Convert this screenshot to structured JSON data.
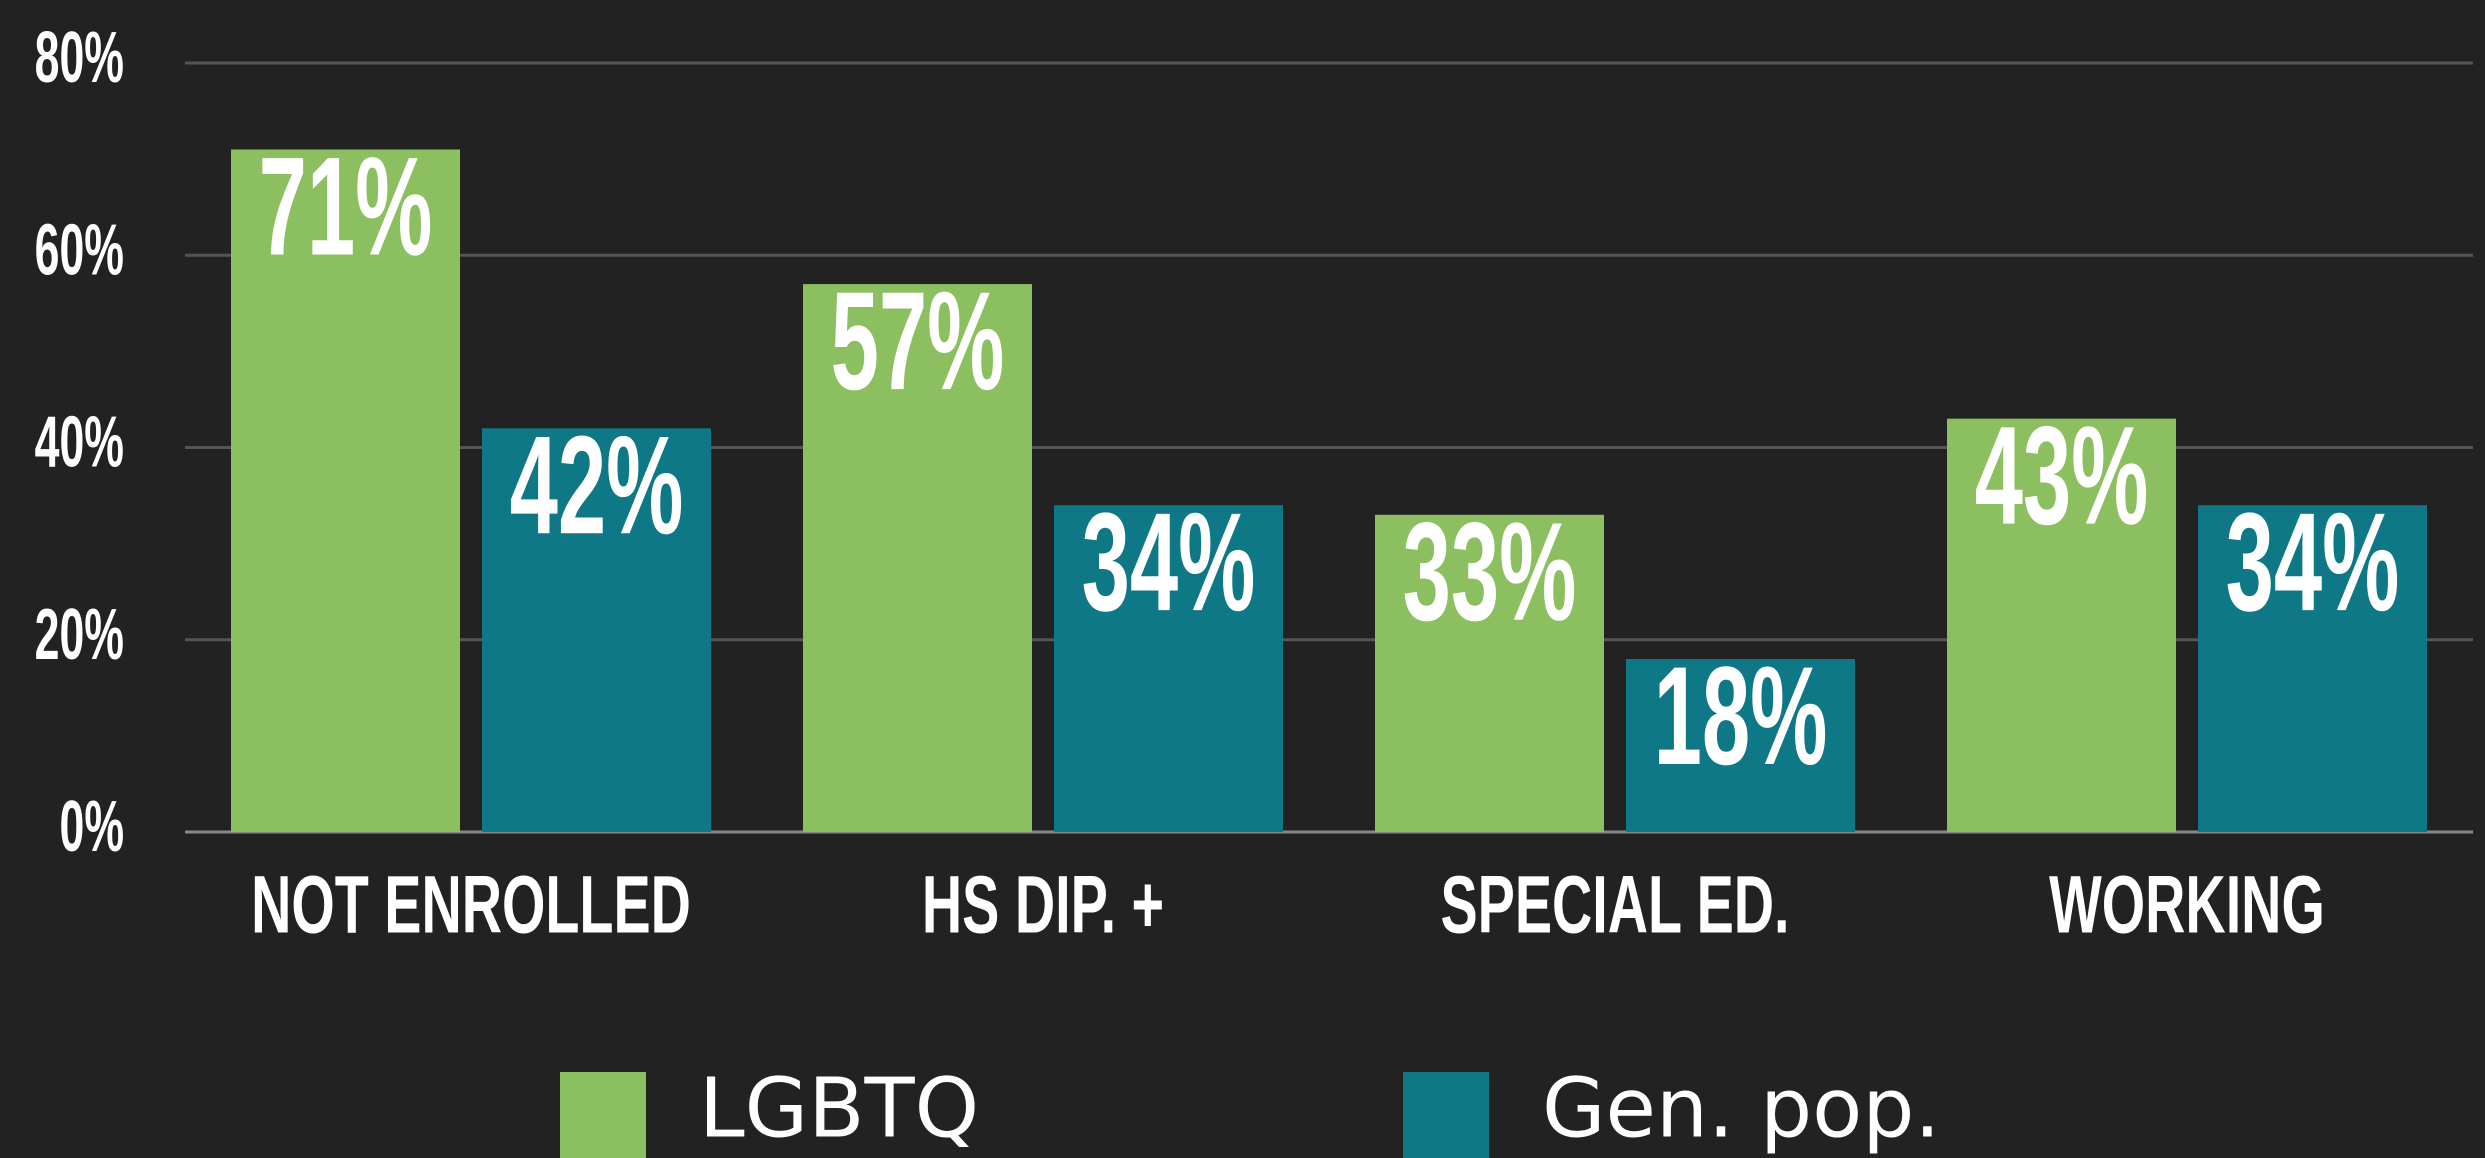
{
  "chart_data": {
    "type": "bar",
    "categories": [
      "NOT ENROLLED",
      "HS DIP. +",
      "SPECIAL ED.",
      "WORKING"
    ],
    "series": [
      {
        "name": "LGBTQ",
        "color": "#8cbf5f",
        "values": [
          71,
          57,
          33,
          43
        ],
        "value_labels": [
          "71%",
          "57%",
          "33%",
          "43%"
        ]
      },
      {
        "name": "Gen. pop.",
        "color": "#0e7886",
        "values": [
          42,
          34,
          18,
          34
        ],
        "value_labels": [
          "42%",
          "34%",
          "18%",
          "34%"
        ]
      }
    ],
    "ylim": [
      0,
      80
    ],
    "yticks": [
      {
        "value": 0,
        "label": "0%"
      },
      {
        "value": 20,
        "label": "20%"
      },
      {
        "value": 40,
        "label": "40%"
      },
      {
        "value": 60,
        "label": "60%"
      },
      {
        "value": 80,
        "label": "80%"
      }
    ],
    "grid": true
  }
}
